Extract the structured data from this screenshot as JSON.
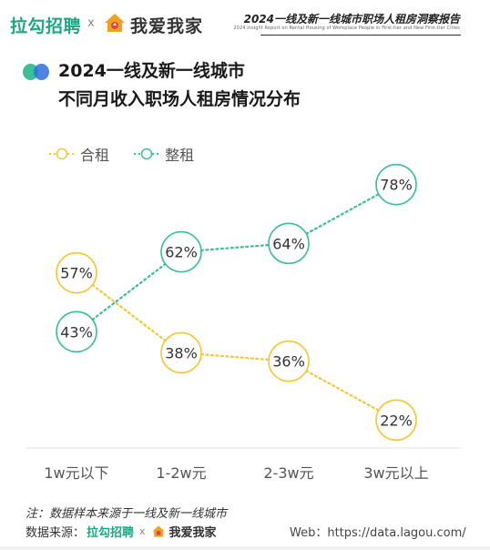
{
  "header": {
    "brand_lagou": "拉勾招聘",
    "brand_x": "x",
    "brand_woaiwojia": "我爱我家",
    "report_title": "2024一线及新一线城市职场人租房洞察报告",
    "report_subtitle": "2024 Insight Report on Rental Housing of Workplace People in First-tier and New First-tier Cities",
    "house_icon": "house-logo-icon"
  },
  "chart_title": {
    "line1": "2024一线及新一线城市",
    "line2": "不同月收入职场人租房情况分布"
  },
  "colors": {
    "shared": "#f2c832",
    "whole": "#3cbf99",
    "brand_green": "#1fa784"
  },
  "chart_data": {
    "type": "line",
    "categories": [
      "1w元以下",
      "1-2w元",
      "2-3w元",
      "3w元以上"
    ],
    "series": [
      {
        "name": "合租",
        "values": [
          57,
          38,
          36,
          22
        ],
        "labels": [
          "57%",
          "38%",
          "36%",
          "22%"
        ]
      },
      {
        "name": "整租",
        "values": [
          43,
          62,
          64,
          78
        ],
        "labels": [
          "43%",
          "62%",
          "64%",
          "78%"
        ]
      }
    ],
    "ylim": [
      0,
      100
    ],
    "grid": false,
    "legend_position": "top-left",
    "xlabel": "",
    "ylabel": ""
  },
  "footer": {
    "note": "注：数据样本来源于一线及新一线城市",
    "source_label": "数据来源：",
    "source_lagou": "拉勾招聘",
    "source_x": "x",
    "source_woaiwojia": "我爱我家",
    "web": "Web：https://data.lagou.com/"
  }
}
